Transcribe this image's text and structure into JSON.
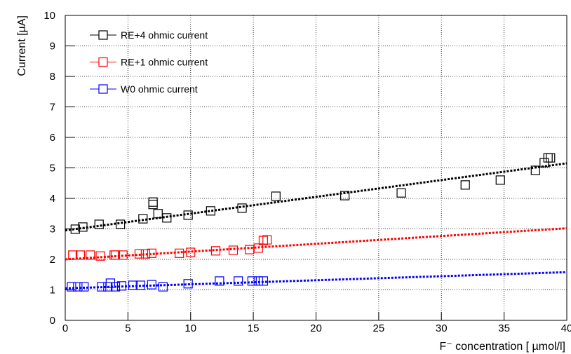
{
  "chart_data": {
    "type": "scatter",
    "ylabel": "Current [µA]",
    "xlabel": "F⁻ concentration [ µmol/l]",
    "xlim": [
      0,
      40
    ],
    "xticks": [
      0,
      5,
      10,
      15,
      20,
      25,
      30,
      35,
      40
    ],
    "ylim": [
      0,
      10
    ],
    "yticks": [
      0,
      1,
      2,
      3,
      4,
      5,
      6,
      7,
      8,
      9,
      10
    ],
    "grid": true,
    "legend": "top-left",
    "series": [
      {
        "name": "RE+4 ohmic current",
        "color": "#000000",
        "x": [
          0.8,
          1.4,
          2.7,
          4.4,
          6.2,
          7.0,
          7.0,
          7.4,
          8.1,
          9.8,
          11.6,
          14.1,
          16.8,
          22.3,
          26.8,
          31.9,
          34.7,
          37.5,
          38.2,
          38.5,
          38.7
        ],
        "values": [
          2.99,
          3.06,
          3.15,
          3.15,
          3.33,
          3.88,
          3.8,
          3.5,
          3.36,
          3.45,
          3.59,
          3.68,
          4.07,
          4.09,
          4.18,
          4.44,
          4.6,
          4.92,
          5.17,
          5.33,
          5.33
        ],
        "fit": {
          "x": [
            0,
            40
          ],
          "y": [
            2.95,
            5.15
          ]
        }
      },
      {
        "name": "RE+1 ohmic current",
        "color": "#ff0000",
        "x": [
          0.6,
          1.2,
          2.0,
          2.8,
          3.9,
          4.0,
          4.6,
          5.9,
          6.4,
          6.9,
          9.1,
          10.0,
          12.0,
          13.4,
          14.7,
          15.4,
          15.8,
          16.1
        ],
        "values": [
          2.14,
          2.14,
          2.14,
          2.11,
          2.14,
          2.14,
          2.14,
          2.18,
          2.18,
          2.2,
          2.2,
          2.23,
          2.28,
          2.3,
          2.32,
          2.37,
          2.62,
          2.64
        ],
        "fit": {
          "x": [
            0,
            40
          ],
          "y": [
            2.0,
            3.02
          ]
        }
      },
      {
        "name": "W0 ohmic current",
        "color": "#0000ff",
        "x": [
          0.5,
          1.0,
          1.5,
          2.9,
          3.4,
          3.6,
          4.0,
          4.5,
          5.4,
          6.0,
          6.9,
          7.8,
          9.8,
          12.3,
          13.8,
          14.9,
          15.4,
          15.8
        ],
        "values": [
          1.1,
          1.1,
          1.1,
          1.1,
          1.1,
          1.22,
          1.1,
          1.13,
          1.15,
          1.15,
          1.17,
          1.1,
          1.2,
          1.29,
          1.29,
          1.29,
          1.29,
          1.29
        ],
        "fit": {
          "x": [
            0,
            40
          ],
          "y": [
            1.05,
            1.58
          ]
        }
      }
    ]
  }
}
